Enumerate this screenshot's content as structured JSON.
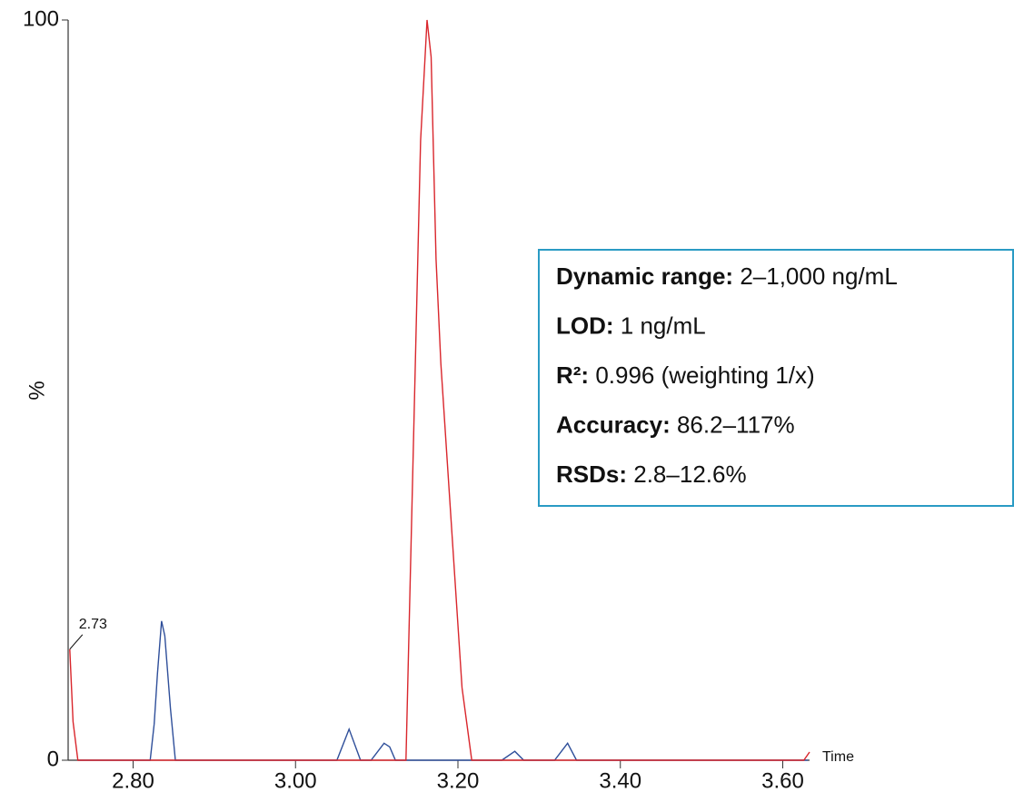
{
  "chart_data": {
    "type": "line",
    "xlabel": "Time",
    "ylabel": "%",
    "xlim": [
      2.72,
      3.633
    ],
    "ylim": [
      0,
      100
    ],
    "xticks": [
      {
        "value": 2.8,
        "label": "2.80"
      },
      {
        "value": 3.0,
        "label": "3.00"
      },
      {
        "value": 3.2,
        "label": "3.20"
      },
      {
        "value": 3.4,
        "label": "3.40"
      },
      {
        "value": 3.6,
        "label": "3.60"
      }
    ],
    "yticks": [
      0,
      100
    ],
    "annotations": [
      {
        "text": "2.73",
        "x": 2.722,
        "y": 15
      }
    ],
    "series": [
      {
        "color": "#2f4f9a",
        "x": [
          2.732,
          2.821,
          2.826,
          2.83,
          2.835,
          2.839,
          2.846,
          2.852,
          3.051,
          3.066,
          3.08,
          3.093,
          3.109,
          3.116,
          3.123,
          3.254,
          3.27,
          3.281,
          3.319,
          3.335,
          3.346,
          3.631
        ],
        "values": [
          0,
          0,
          4.9,
          11.7,
          18.8,
          16.8,
          7,
          0,
          0,
          4.2,
          0,
          0,
          2.3,
          1.8,
          0,
          0,
          1.2,
          0,
          0,
          2.3,
          0,
          0
        ]
      },
      {
        "color": "#d9262c",
        "x": [
          2.722,
          2.726,
          2.732,
          3.136,
          3.154,
          3.162,
          3.167,
          3.173,
          3.179,
          3.205,
          3.217,
          3.626,
          3.633
        ],
        "values": [
          15,
          5.2,
          0,
          0,
          83.7,
          100,
          95,
          67.7,
          53.6,
          9.8,
          0,
          0,
          1.1
        ]
      }
    ],
    "info_box": [
      {
        "label": "Dynamic range:",
        "text": "2–1,000 ng/mL"
      },
      {
        "label": "LOD:",
        "text": "1 ng/mL"
      },
      {
        "label": "R²:",
        "text": "0.996 (weighting 1/x)"
      },
      {
        "label": "Accuracy:",
        "text": "86.2–117%"
      },
      {
        "label": "RSDs:",
        "text": "2.8–12.6%"
      }
    ]
  }
}
